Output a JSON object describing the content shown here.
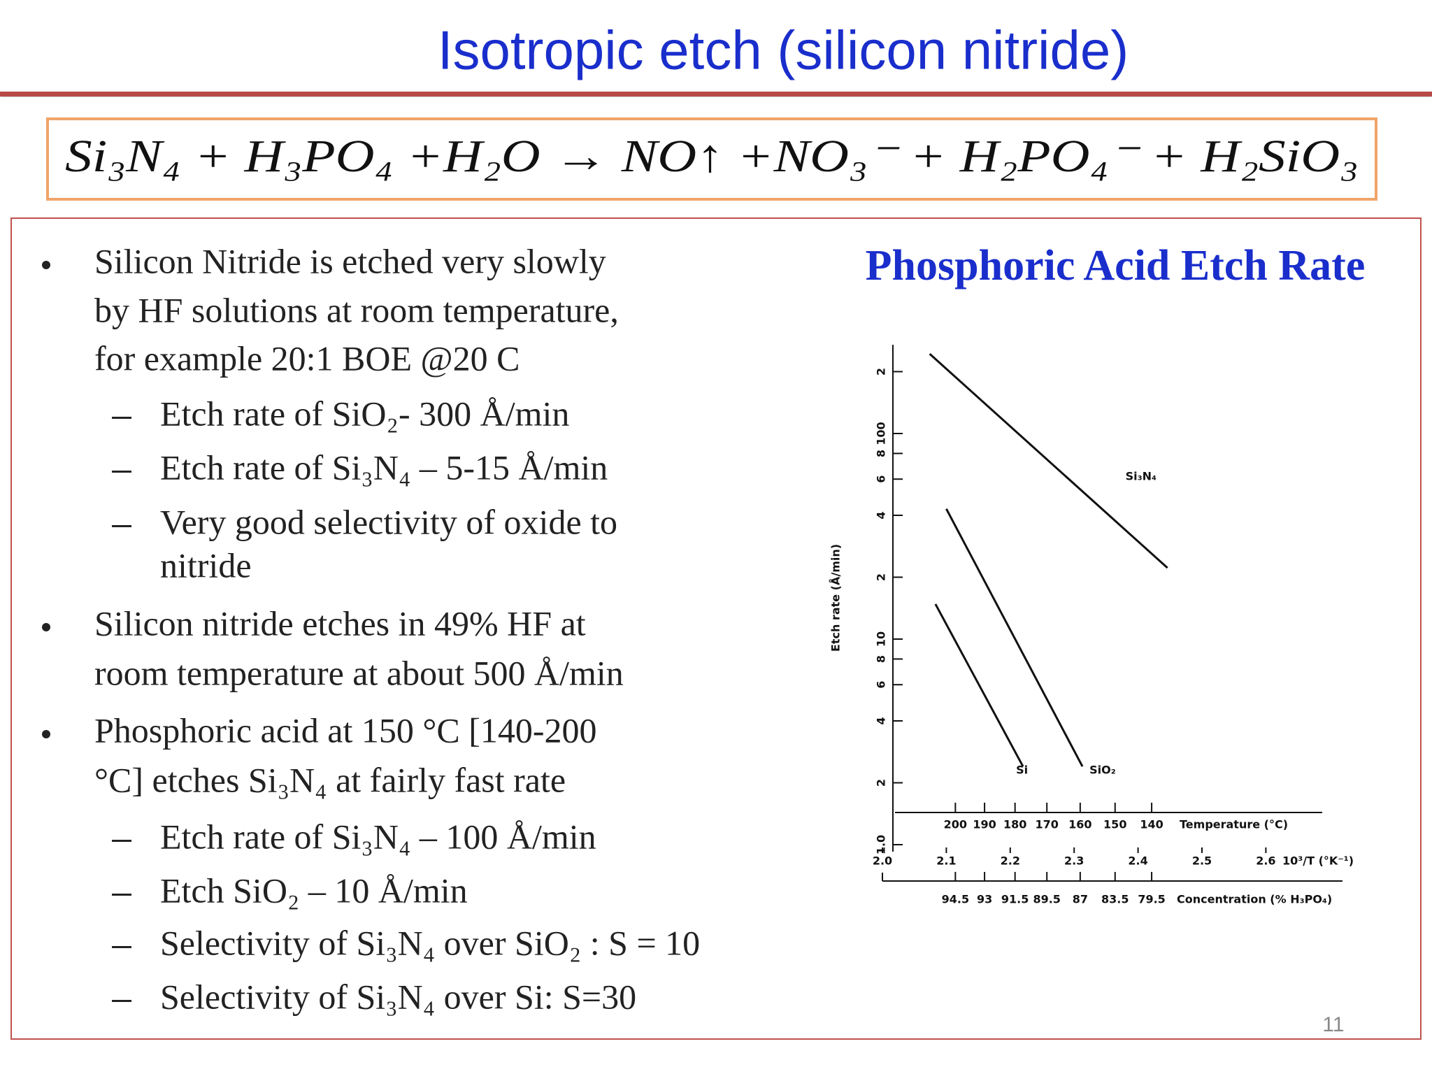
{
  "slide": {
    "title": "Isotropic etch (silicon nitride)",
    "equation": "Si₃N₄ + H₃PO₄ +H₂O → NO↑ +NO₃⁻ + H₂PO₄⁻ + H₂SiO₃",
    "items": [
      {
        "level": 1,
        "lines": [
          "Silicon Nitride is etched very slowly",
          "by HF solutions at room temperature,",
          "for example 20:1 BOE @20 C"
        ]
      },
      {
        "level": 2,
        "lines": [
          "Etch rate of SiO₂- 300  Å/min"
        ]
      },
      {
        "level": 2,
        "lines": [
          "Etch rate of Si₃N₄ – 5-15 Å/min"
        ]
      },
      {
        "level": 2,
        "lines": [
          "Very good selectivity of oxide to",
          "nitride"
        ]
      },
      {
        "level": 1,
        "lines": [
          "Silicon nitride etches in 49% HF at",
          "room temperature at about 500 Å/min"
        ]
      },
      {
        "level": 1,
        "lines": [
          "Phosphoric acid at 150 °C [140-200",
          "°C] etches Si₃N₄ at fairly fast rate"
        ]
      },
      {
        "level": 2,
        "lines": [
          "Etch rate of Si₃N₄ – 100 Å/min"
        ]
      },
      {
        "level": 2,
        "lines": [
          "Etch SiO₂ – 10 Å/min"
        ]
      },
      {
        "level": 2,
        "lines": [
          "Selectivity of Si₃N₄ over SiO₂ : S = 10"
        ]
      },
      {
        "level": 2,
        "lines": [
          "Selectivity of Si₃N₄ over Si:  S=30"
        ]
      }
    ],
    "page_number": "11"
  },
  "chart_data": {
    "type": "line",
    "title": "Phosphoric Acid Etch Rate",
    "y_label": "Etch rate (Å/min)",
    "x_label": "10³/T (°K⁻¹)",
    "temperature_label": "Temperature (°C)",
    "concentration_label": "Concentration (% H₃PO₄)",
    "log_scale": "y",
    "xlim": [
      2,
      2.7
    ],
    "ylim": [
      1,
      270
    ],
    "xticks": [
      {
        "value": 2,
        "label": "2.0"
      },
      2.1,
      2.2,
      2.3,
      2.4,
      2.5,
      2.6
    ],
    "yticks": [
      {
        "value": 1,
        "label": "1.0"
      },
      2,
      4,
      6,
      8,
      {
        "value": 10,
        "label": "10"
      },
      {
        "value": 20,
        "label": "2"
      },
      {
        "value": 40,
        "label": "4"
      },
      {
        "value": 60,
        "label": "6"
      },
      {
        "value": 80,
        "label": "8"
      },
      {
        "value": 100,
        "label": "100"
      },
      {
        "value": 200,
        "label": "2"
      }
    ],
    "temperature_ticks": [
      200,
      190,
      180,
      170,
      160,
      150,
      140
    ],
    "concentration_ticks": [
      94.5,
      93,
      91.5,
      89.5,
      87,
      83.5,
      79.5
    ],
    "series": [
      {
        "name": "Si₃N₄",
        "color": "#111111",
        "x": [
          2.074,
          2.446
        ],
        "values": [
          244,
          22.2
        ]
      },
      {
        "name": "SiO₂",
        "color": "#111111",
        "x": [
          2.1,
          2.313
        ],
        "values": [
          43,
          2.4
        ]
      },
      {
        "name": "Si",
        "color": "#111111",
        "x": [
          2.083,
          2.22
        ],
        "values": [
          14.8,
          2.4
        ]
      }
    ]
  }
}
